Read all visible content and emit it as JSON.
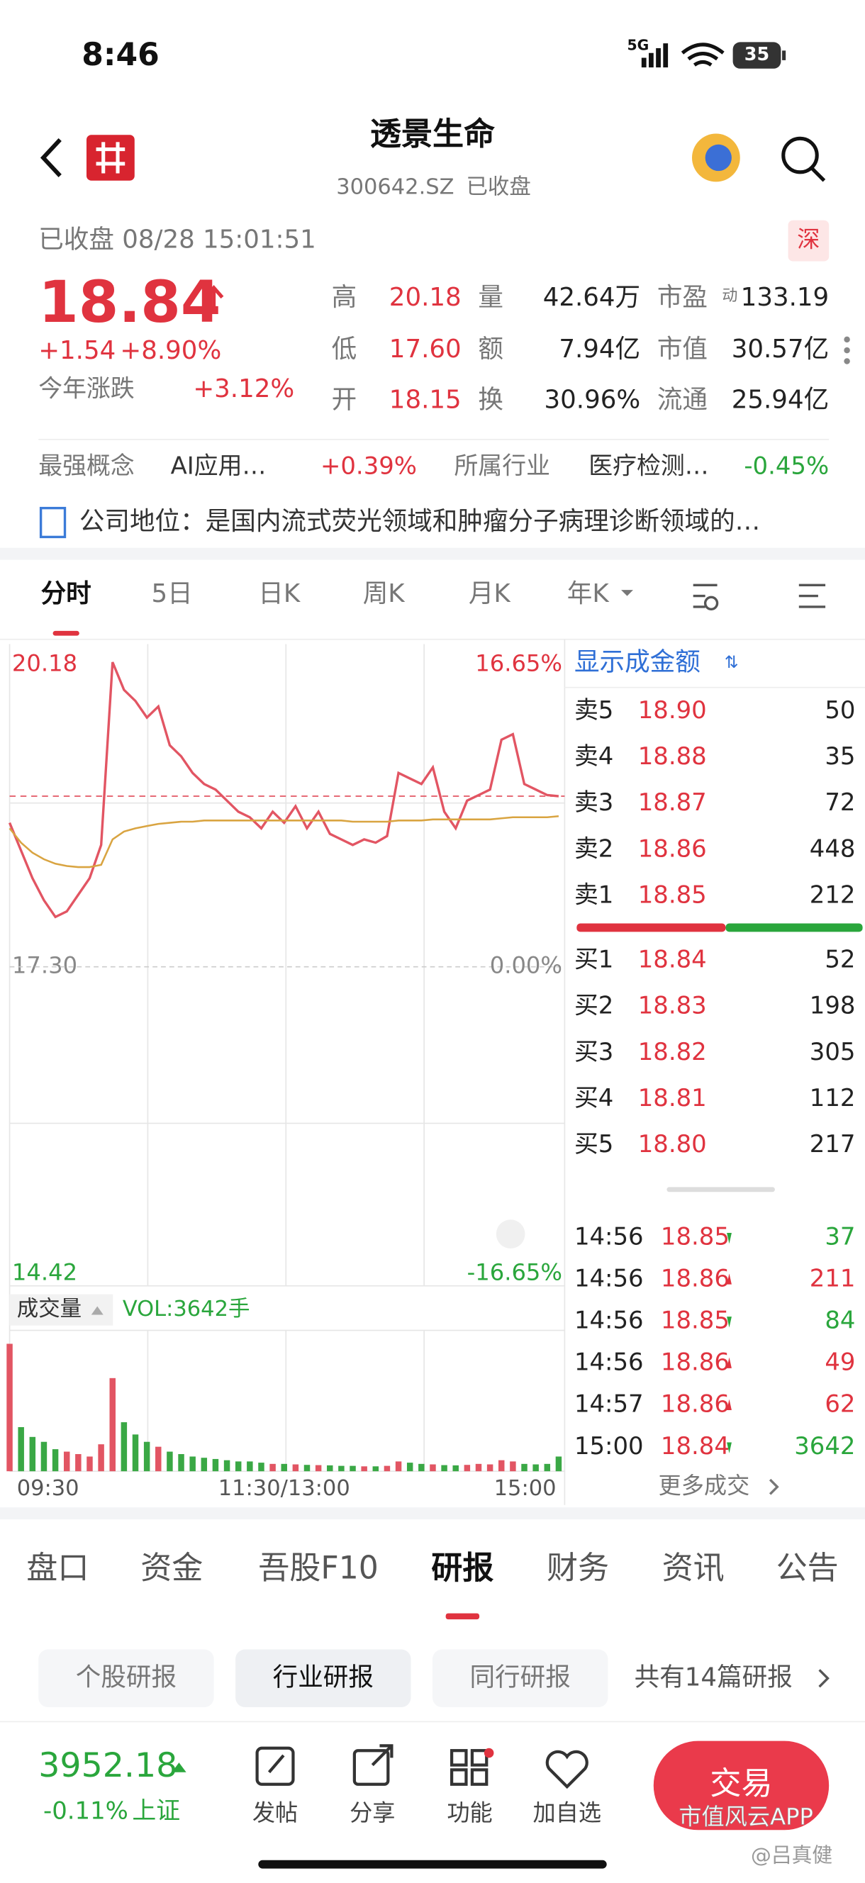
{
  "status_bar": {
    "time": "8:46",
    "network": "5G",
    "battery": "35"
  },
  "header": {
    "title": "透景生命",
    "code": "300642.SZ",
    "state": "已收盘"
  },
  "quote": {
    "timestamp": "已收盘 08/28 15:01:51",
    "exchange": "深",
    "price": "18.84",
    "change": "+1.54",
    "change_pct": "+8.90%",
    "ytd_label": "今年涨跌",
    "ytd": "+3.12%",
    "stats": [
      [
        {
          "label": "高",
          "value": "20.18",
          "color": "#e0333f"
        },
        {
          "label": "量",
          "value": "42.64万",
          "color": "#222222"
        },
        {
          "label": "市盈",
          "note": "动",
          "value": "133.19",
          "color": "#222222"
        }
      ],
      [
        {
          "label": "低",
          "value": "17.60",
          "color": "#e0333f"
        },
        {
          "label": "额",
          "value": "7.94亿",
          "color": "#222222"
        },
        {
          "label": "市值",
          "value": "30.57亿",
          "color": "#222222"
        }
      ],
      [
        {
          "label": "开",
          "value": "18.15",
          "color": "#e0333f"
        },
        {
          "label": "换",
          "value": "30.96%",
          "color": "#222222"
        },
        {
          "label": "流通",
          "value": "25.94亿",
          "color": "#222222"
        }
      ]
    ]
  },
  "concepts": [
    {
      "label": "最强概念",
      "name": "AI应用…",
      "change": "+0.39%",
      "color": "#e0333f"
    },
    {
      "label": "所属行业",
      "name": "医疗检测…",
      "change": "-0.45%",
      "color": "#2aa63c"
    }
  ],
  "company": "公司地位：是国内流式荧光领域和肿瘤分子病理诊断领域的…",
  "tabs": [
    "分时",
    "5日",
    "日K",
    "周K",
    "月K",
    "年K"
  ],
  "chart_data": {
    "type": "line",
    "categories": [
      "09:30",
      null,
      null,
      null,
      null,
      null,
      null,
      null,
      null,
      null,
      null,
      null,
      null,
      null,
      null,
      null,
      null,
      null,
      null,
      null,
      null,
      null,
      null,
      null,
      "11:30/13:00",
      null,
      null,
      null,
      null,
      null,
      null,
      null,
      null,
      null,
      null,
      null,
      null,
      null,
      null,
      null,
      null,
      null,
      null,
      null,
      null,
      null,
      null,
      null,
      "15:00"
    ],
    "series": [
      {
        "color": "#e25563",
        "values": [
          18.6,
          18.35,
          18.1,
          17.9,
          17.75,
          17.8,
          17.95,
          18.1,
          18.4,
          20.05,
          19.8,
          19.7,
          19.55,
          19.65,
          19.3,
          19.2,
          19.05,
          18.95,
          18.9,
          18.8,
          18.7,
          18.65,
          18.55,
          18.7,
          18.6,
          18.75,
          18.55,
          18.7,
          18.5,
          18.45,
          18.4,
          18.45,
          18.42,
          18.48,
          19.05,
          19.0,
          18.95,
          19.1,
          18.7,
          18.55,
          18.8,
          18.85,
          18.9,
          19.35,
          19.4,
          18.95,
          18.9,
          18.85,
          18.84
        ]
      },
      {
        "color": "#d9a441",
        "values": [
          18.55,
          18.42,
          18.33,
          18.27,
          18.23,
          18.21,
          18.2,
          18.2,
          18.22,
          18.45,
          18.52,
          18.55,
          18.57,
          18.59,
          18.6,
          18.61,
          18.61,
          18.62,
          18.62,
          18.62,
          18.62,
          18.62,
          18.62,
          18.62,
          18.62,
          18.62,
          18.62,
          18.62,
          18.62,
          18.62,
          18.61,
          18.61,
          18.61,
          18.61,
          18.62,
          18.62,
          18.62,
          18.63,
          18.63,
          18.63,
          18.63,
          18.63,
          18.63,
          18.64,
          18.65,
          18.65,
          18.65,
          18.65,
          18.66
        ]
      }
    ],
    "ylim": [
      14.42,
      20.18
    ],
    "yticks": [
      {
        "value": 20.18,
        "label": "20.18"
      },
      {
        "value": 17.3,
        "label": "17.30"
      },
      {
        "value": 14.42,
        "label": "14.42"
      }
    ],
    "y2lim": [
      -16.65,
      16.65
    ],
    "y2ticks": [
      {
        "value": 16.65,
        "label": "16.65%"
      },
      {
        "value": 0,
        "label": "0.00%"
      },
      {
        "value": -16.65,
        "label": "-16.65%"
      }
    ],
    "volume": {
      "label": "成交量",
      "summary": "VOL:3642手",
      "ylim": [
        0,
        560
      ],
      "values": [
        520,
        180,
        140,
        120,
        90,
        80,
        70,
        60,
        110,
        380,
        200,
        150,
        120,
        100,
        80,
        70,
        60,
        55,
        50,
        45,
        40,
        40,
        35,
        30,
        30,
        28,
        26,
        25,
        24,
        22,
        22,
        20,
        20,
        22,
        40,
        35,
        30,
        28,
        25,
        24,
        26,
        30,
        28,
        45,
        40,
        30,
        28,
        30,
        60
      ]
    }
  },
  "order_book": {
    "title": "显示成金额",
    "asks": [
      [
        "卖5",
        "18.90",
        "50"
      ],
      [
        "卖4",
        "18.88",
        "35"
      ],
      [
        "卖3",
        "18.87",
        "72"
      ],
      [
        "卖2",
        "18.86",
        "448"
      ],
      [
        "卖1",
        "18.85",
        "212"
      ]
    ],
    "bids": [
      [
        "买1",
        "18.84",
        "52"
      ],
      [
        "买2",
        "18.83",
        "198"
      ],
      [
        "买3",
        "18.82",
        "305"
      ],
      [
        "买4",
        "18.81",
        "112"
      ],
      [
        "买5",
        "18.80",
        "217"
      ]
    ]
  },
  "trades": {
    "rows": [
      {
        "time": "14:56",
        "price": "18.85",
        "volume": "37",
        "color": "#2aa63c"
      },
      {
        "time": "14:56",
        "price": "18.86",
        "volume": "211",
        "color": "#e0333f"
      },
      {
        "time": "14:56",
        "price": "18.85",
        "volume": "84",
        "color": "#2aa63c"
      },
      {
        "time": "14:56",
        "price": "18.86",
        "volume": "49",
        "color": "#e0333f"
      },
      {
        "time": "14:57",
        "price": "18.86",
        "volume": "62",
        "color": "#e0333f"
      },
      {
        "time": "15:00",
        "price": "18.84",
        "volume": "3642",
        "color": "#2aa63c"
      }
    ],
    "more": "更多成交"
  },
  "sections": [
    "盘口",
    "资金",
    "吾股F10",
    "研报",
    "财务",
    "资讯",
    "公告"
  ],
  "report_tabs": [
    "个股研报",
    "行业研报",
    "同行研报"
  ],
  "report_count": "共有14篇研报",
  "index": {
    "value": "3952.18",
    "change": "-0.11%",
    "name": "上证"
  },
  "actions": [
    "发帖",
    "分享",
    "功能",
    "加自选"
  ],
  "trade_button": "交易",
  "watermark": [
    "市值风云APP",
    "@吕真健"
  ]
}
